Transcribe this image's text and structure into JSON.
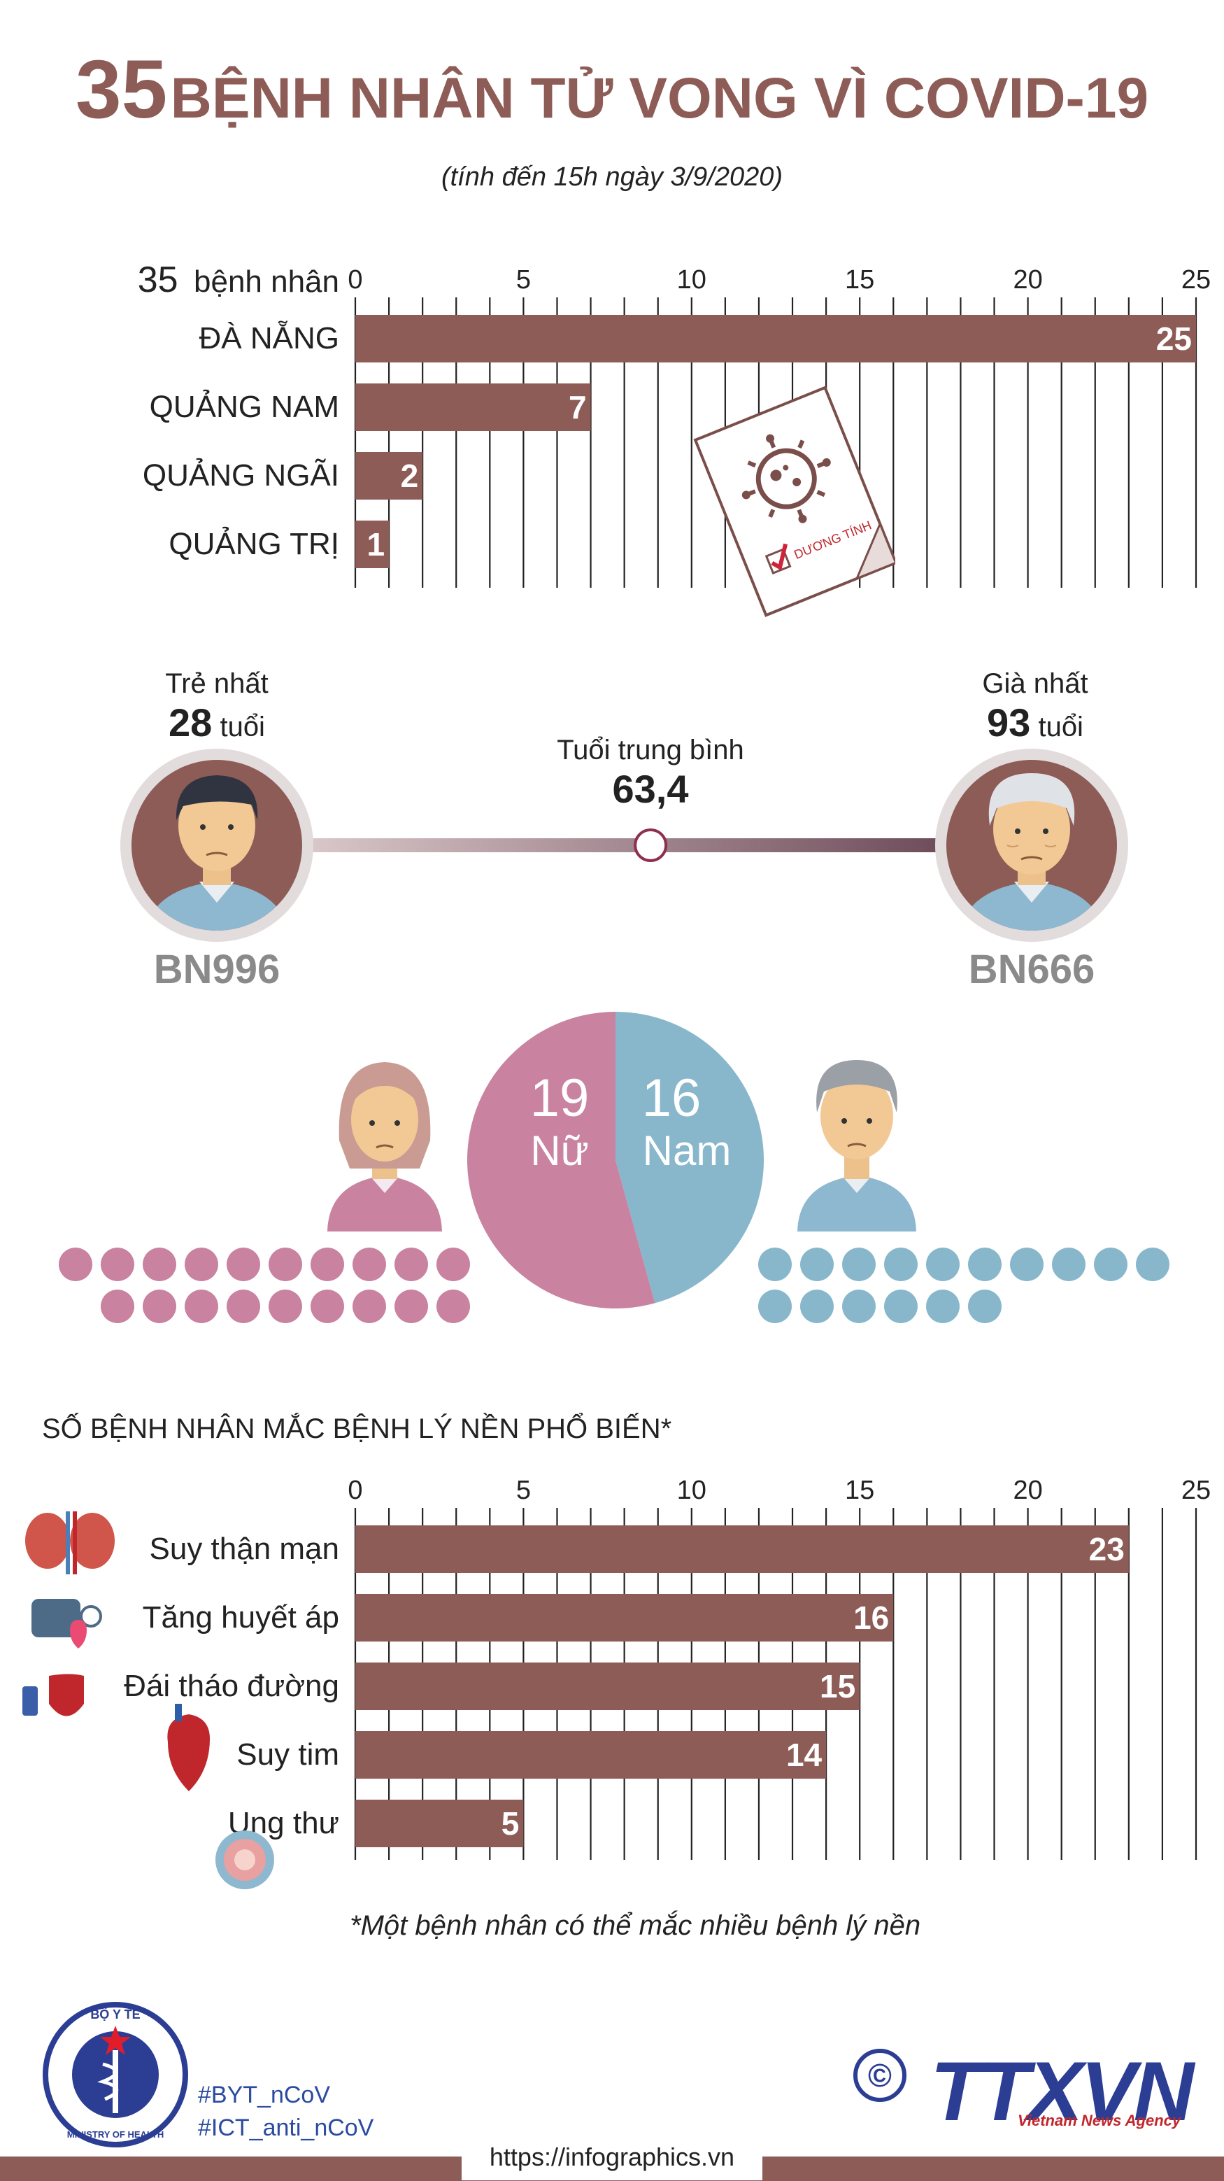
{
  "title": {
    "number": "35",
    "text": "BỆNH NHÂN TỬ VONG VÌ COVID-19"
  },
  "subtitle": "(tính đến 15h ngày 3/9/2020)",
  "chart_data": [
    {
      "type": "bar",
      "orientation": "horizontal",
      "title": "35 bệnh nhân",
      "categories": [
        "ĐÀ NẴNG",
        "QUẢNG NAM",
        "QUẢNG NGÃI",
        "QUẢNG TRỊ"
      ],
      "values": [
        25,
        7,
        2,
        1
      ],
      "xlim": [
        0,
        25
      ],
      "ticks": [
        0,
        5,
        10,
        15,
        20,
        25
      ],
      "grid": true,
      "color": "#8e5c56"
    },
    {
      "type": "pie",
      "categories": [
        "Nữ",
        "Nam"
      ],
      "values": [
        19,
        16
      ],
      "colors": [
        "#c9829f",
        "#88b7cc"
      ]
    },
    {
      "type": "bar",
      "orientation": "horizontal",
      "title": "SỐ BỆNH NHÂN MẮC BỆNH LÝ NỀN PHỔ BIẾN*",
      "categories": [
        "Suy thận mạn",
        "Tăng huyết áp",
        "Đái tháo đường",
        "Suy tim",
        "Ung thư"
      ],
      "values": [
        23,
        16,
        15,
        14,
        5
      ],
      "xlim": [
        0,
        25
      ],
      "ticks": [
        0,
        5,
        10,
        15,
        20,
        25
      ],
      "grid": true,
      "color": "#8e5c56"
    }
  ],
  "chart1": {
    "title_number": "35",
    "title_text": "bệnh nhân"
  },
  "stamp_text": "DƯƠNG TÍNH",
  "age": {
    "youngest_label": "Trẻ nhất",
    "youngest_value": "28",
    "youngest_unit": "tuổi",
    "youngest_id": "BN996",
    "oldest_label": "Già nhất",
    "oldest_value": "93",
    "oldest_unit": "tuổi",
    "oldest_id": "BN666",
    "average_label": "Tuổi trung bình",
    "average_value": "63,4",
    "average_numeric": 63.4
  },
  "gender": {
    "female_count": "19",
    "female_label": "Nữ",
    "male_count": "16",
    "male_label": "Nam"
  },
  "footnote": "*Một bệnh nhân có thể mắc nhiều bệnh lý nền",
  "footer": {
    "hashtag1": "#BYT_nCoV",
    "hashtag2": "#ICT_anti_nCoV",
    "url": "https://infographics.vn",
    "agency": "TTXVN",
    "agency_sub": "Vietnam News Agency",
    "copyright": "©",
    "ministry_top": "BỘ Y TẾ",
    "ministry_bottom": "MINISTRY OF HEALTH"
  },
  "colors": {
    "brand": "#8e5c56",
    "female": "#c9829f",
    "male": "#88b7cc",
    "agency_blue": "#2c3e94"
  }
}
